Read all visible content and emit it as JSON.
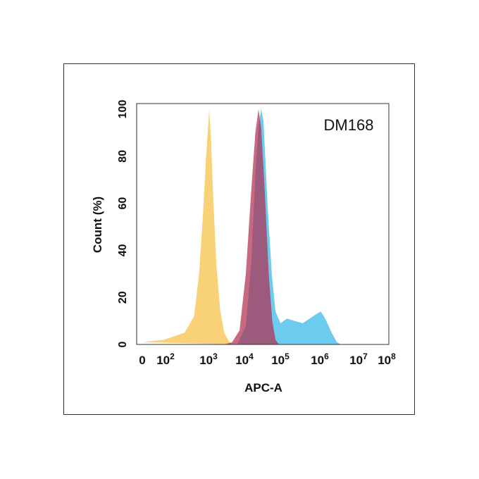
{
  "chart_data": {
    "type": "area",
    "title": "",
    "label": "DM168",
    "xlabel": "APC-A",
    "ylabel": "Count  (%)",
    "xscale": "log",
    "xlim": [
      0,
      100000000
    ],
    "ylim": [
      0,
      100
    ],
    "xtick_labels": [
      {
        "base": "0",
        "exp": ""
      },
      {
        "base": "10",
        "exp": "2"
      },
      {
        "base": "10",
        "exp": "3"
      },
      {
        "base": "10",
        "exp": "4"
      },
      {
        "base": "10",
        "exp": "5"
      },
      {
        "base": "10",
        "exp": "6"
      },
      {
        "base": "10",
        "exp": "7"
      },
      {
        "base": "10",
        "exp": "8"
      }
    ],
    "ytick_labels": [
      "0",
      "20",
      "40",
      "60",
      "80",
      "100"
    ],
    "series": [
      {
        "color": "#f7c24a",
        "points": [
          [
            0,
            1
          ],
          [
            100,
            2
          ],
          [
            300,
            5
          ],
          [
            500,
            12
          ],
          [
            650,
            30
          ],
          [
            800,
            55
          ],
          [
            950,
            80
          ],
          [
            1150,
            100
          ],
          [
            1300,
            85
          ],
          [
            1500,
            60
          ],
          [
            1800,
            35
          ],
          [
            2300,
            15
          ],
          [
            3000,
            5
          ],
          [
            4000,
            1.5
          ],
          [
            5000,
            0
          ]
        ]
      },
      {
        "color": "#44bdea",
        "points": [
          [
            7000,
            0
          ],
          [
            12000,
            8
          ],
          [
            17000,
            35
          ],
          [
            22000,
            72
          ],
          [
            27000,
            93
          ],
          [
            32000,
            100
          ],
          [
            37000,
            95
          ],
          [
            48000,
            60
          ],
          [
            63000,
            30
          ],
          [
            80000,
            14
          ],
          [
            110000,
            9
          ],
          [
            160000,
            11
          ],
          [
            250000,
            10
          ],
          [
            400000,
            9
          ],
          [
            600000,
            11
          ],
          [
            900000,
            13
          ],
          [
            1150000,
            14
          ],
          [
            1500000,
            11
          ],
          [
            2200000,
            5
          ],
          [
            3000000,
            1
          ],
          [
            3800000,
            0
          ]
        ]
      },
      {
        "color": "#b02a4c",
        "points": [
          [
            3000,
            0
          ],
          [
            5000,
            1
          ],
          [
            8000,
            6
          ],
          [
            12000,
            30
          ],
          [
            17000,
            66
          ],
          [
            22000,
            90
          ],
          [
            27000,
            100
          ],
          [
            32000,
            92
          ],
          [
            40000,
            66
          ],
          [
            52000,
            30
          ],
          [
            65000,
            10
          ],
          [
            80000,
            2
          ],
          [
            100000,
            0
          ]
        ]
      }
    ]
  }
}
